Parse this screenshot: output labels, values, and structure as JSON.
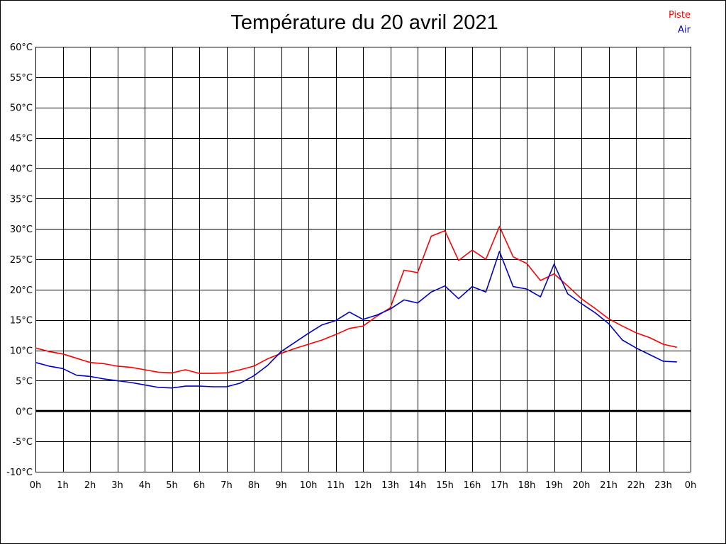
{
  "chart_data": {
    "type": "line",
    "title": "Température du 20 avril 2021",
    "x_ticks": [
      "0h",
      "1h",
      "2h",
      "3h",
      "4h",
      "5h",
      "6h",
      "7h",
      "8h",
      "9h",
      "10h",
      "11h",
      "12h",
      "13h",
      "14h",
      "15h",
      "16h",
      "17h",
      "18h",
      "19h",
      "20h",
      "21h",
      "22h",
      "23h",
      "0h"
    ],
    "y_ticks": [
      "-10°C",
      "-5°C",
      "0°C",
      "5°C",
      "10°C",
      "15°C",
      "20°C",
      "25°C",
      "30°C",
      "35°C",
      "40°C",
      "45°C",
      "50°C",
      "55°C",
      "60°C"
    ],
    "xlim": [
      0,
      24
    ],
    "ylim": [
      -10,
      60
    ],
    "grid": true,
    "legend_position": "top-right",
    "zero_line": true,
    "x": [
      0,
      0.5,
      1,
      1.5,
      2,
      2.5,
      3,
      3.5,
      4,
      4.5,
      5,
      5.5,
      6,
      6.5,
      7,
      7.5,
      8,
      8.5,
      9,
      9.5,
      10,
      10.5,
      11,
      11.5,
      12,
      12.5,
      13,
      13.5,
      14,
      14.5,
      15,
      15.5,
      16,
      16.5,
      17,
      17.5,
      18,
      18.5,
      19,
      19.5,
      20,
      20.5,
      21,
      21.5,
      22,
      22.5,
      23,
      23.5
    ],
    "series": [
      {
        "name": "Piste",
        "color": "#ff0000",
        "values": [
          10.4,
          9.8,
          9.4,
          8.7,
          8.0,
          7.8,
          7.4,
          7.2,
          6.8,
          6.4,
          6.3,
          6.8,
          6.2,
          6.2,
          6.3,
          6.8,
          7.4,
          8.6,
          9.5,
          10.3,
          11.0,
          11.7,
          12.6,
          13.6,
          14.0,
          15.6,
          17.0,
          23.2,
          22.8,
          28.8,
          29.7,
          24.8,
          26.5,
          25.0,
          30.4,
          25.4,
          24.3,
          21.5,
          22.6,
          20.6,
          18.5,
          16.9,
          15.2,
          14.0,
          12.9,
          12.1,
          11.0,
          10.5
        ]
      },
      {
        "name": "Air",
        "color": "#0000c8",
        "values": [
          8.0,
          7.4,
          7.0,
          5.9,
          5.7,
          5.3,
          5.0,
          4.7,
          4.3,
          3.9,
          3.8,
          4.1,
          4.1,
          4.0,
          4.0,
          4.6,
          5.8,
          7.5,
          9.8,
          11.3,
          12.8,
          14.2,
          14.9,
          16.3,
          15.1,
          15.8,
          16.8,
          18.3,
          17.8,
          19.6,
          20.6,
          18.5,
          20.5,
          19.6,
          26.3,
          20.5,
          20.1,
          18.8,
          24.2,
          19.3,
          17.7,
          16.2,
          14.4,
          11.7,
          10.4,
          9.3,
          8.2,
          8.1
        ]
      }
    ]
  }
}
